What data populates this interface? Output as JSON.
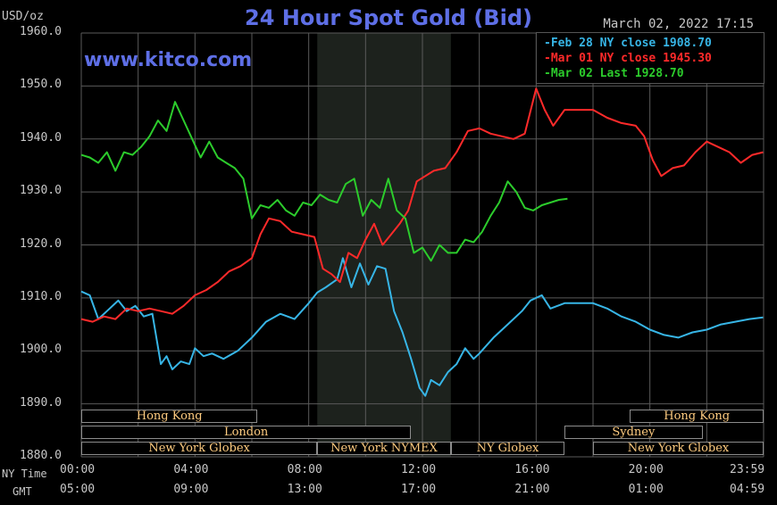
{
  "title": "24 Hour Spot Gold (Bid)",
  "unit_label": "USD/oz",
  "timestamp": "March 02, 2022 17:15",
  "website": "www.kitco.com",
  "colors": {
    "background": "#000000",
    "grid": "#5a5a5a",
    "title": "#5e6fe6",
    "session_text": "#ffcc80",
    "shaded": "#1d221d"
  },
  "legend": [
    {
      "marker": "-",
      "label": "Feb 28 NY close",
      "value": "1908.70",
      "color": "#37b5e6"
    },
    {
      "marker": "-",
      "label": "Mar 01 NY close",
      "value": "1945.30",
      "color": "#ff2a2a"
    },
    {
      "marker": "-",
      "label": "Mar 02 Last",
      "value": "1928.70",
      "color": "#2ccc2c"
    }
  ],
  "row_labels": {
    "ny": "NY Time",
    "gmt": "GMT"
  },
  "sessions": [
    {
      "name": "Hong Kong",
      "start": 0,
      "end": 6.2,
      "row": 0
    },
    {
      "name": "London",
      "start": 0,
      "end": 11.6,
      "row": 1
    },
    {
      "name": "New York Globex",
      "start": 0,
      "end": 8.3,
      "row": 2
    },
    {
      "name": "New York NYMEX",
      "start": 8.3,
      "end": 13.0,
      "row": 2
    },
    {
      "name": "NY Globex",
      "start": 13.0,
      "end": 17.0,
      "row": 2
    },
    {
      "name": "Sydney",
      "start": 17.0,
      "end": 21.85,
      "row": 1
    },
    {
      "name": "Hong Kong",
      "start": 19.3,
      "end": 24,
      "row": 0
    },
    {
      "name": "New York Globex",
      "start": 18.0,
      "end": 24,
      "row": 2
    }
  ],
  "chart_data": {
    "type": "line",
    "title": "24 Hour Spot Gold (Bid)",
    "ylabel": "USD/oz",
    "ylim": [
      1880,
      1960
    ],
    "xlim": [
      0,
      24
    ],
    "y_ticks": [
      "1960.0",
      "1950.0",
      "1940.0",
      "1930.0",
      "1920.0",
      "1910.0",
      "1900.0",
      "1890.0",
      "1880.0"
    ],
    "x_ticks_ny": [
      "00:00",
      "04:00",
      "08:00",
      "12:00",
      "16:00",
      "20:00",
      "23:59"
    ],
    "x_ticks_gmt": [
      "05:00",
      "09:00",
      "13:00",
      "17:00",
      "21:00",
      "01:00",
      "04:59"
    ],
    "shaded_region": [
      8.3,
      13.0
    ],
    "grid": true,
    "legend_position": "top-right",
    "series": [
      {
        "name": "Feb 28 NY close",
        "color": "#37b5e6",
        "x": [
          0,
          0.3,
          0.6,
          1.0,
          1.3,
          1.6,
          1.9,
          2.2,
          2.5,
          2.8,
          3.0,
          3.2,
          3.5,
          3.8,
          4.0,
          4.3,
          4.6,
          5.0,
          5.5,
          6.0,
          6.5,
          7.0,
          7.5,
          8.0,
          8.3,
          8.6,
          9.0,
          9.2,
          9.5,
          9.8,
          10.1,
          10.4,
          10.7,
          11.0,
          11.3,
          11.6,
          11.9,
          12.1,
          12.3,
          12.6,
          12.9,
          13.2,
          13.5,
          13.8,
          14.0,
          14.5,
          15.0,
          15.5,
          15.8,
          16.2,
          16.5,
          17.0,
          17.5,
          18.0,
          18.5,
          19.0,
          19.5,
          20.0,
          20.5,
          21.0,
          21.5,
          22.0,
          22.5,
          23.0,
          23.5,
          23.98
        ],
        "y": [
          1911.2,
          1910.5,
          1906.0,
          1908.0,
          1909.5,
          1907.5,
          1908.5,
          1906.5,
          1907.0,
          1897.5,
          1899.0,
          1896.5,
          1898.0,
          1897.5,
          1900.5,
          1899.0,
          1899.5,
          1898.5,
          1900.0,
          1902.5,
          1905.5,
          1907.0,
          1906.0,
          1909.0,
          1911.0,
          1912.0,
          1913.5,
          1917.5,
          1912.0,
          1916.5,
          1912.5,
          1916.0,
          1915.5,
          1907.5,
          1903.5,
          1898.5,
          1893.0,
          1891.5,
          1894.5,
          1893.5,
          1896.0,
          1897.5,
          1900.5,
          1898.5,
          1899.5,
          1902.5,
          1905.0,
          1907.5,
          1909.5,
          1910.5,
          1908.0,
          1909.0,
          1909.0,
          1909.0,
          1908.0,
          1906.5,
          1905.5,
          1904.0,
          1903.0,
          1902.5,
          1903.5,
          1904.0,
          1905.0,
          1905.5,
          1906.0,
          1906.3
        ]
      },
      {
        "name": "Mar 01 NY close",
        "color": "#ff2a2a",
        "x": [
          0,
          0.4,
          0.8,
          1.2,
          1.6,
          2.0,
          2.4,
          2.8,
          3.2,
          3.6,
          4.0,
          4.4,
          4.8,
          5.2,
          5.6,
          6.0,
          6.3,
          6.6,
          7.0,
          7.4,
          7.8,
          8.2,
          8.5,
          8.8,
          9.1,
          9.4,
          9.7,
          10.0,
          10.3,
          10.6,
          10.9,
          11.2,
          11.5,
          11.8,
          12.1,
          12.4,
          12.8,
          13.2,
          13.6,
          14.0,
          14.4,
          14.8,
          15.2,
          15.6,
          16.0,
          16.3,
          16.6,
          17.0,
          17.5,
          18.0,
          18.5,
          19.0,
          19.5,
          19.8,
          20.1,
          20.4,
          20.8,
          21.2,
          21.6,
          22.0,
          22.4,
          22.8,
          23.2,
          23.6,
          23.98
        ],
        "y": [
          1906.0,
          1905.5,
          1906.5,
          1906.0,
          1908.0,
          1907.5,
          1908.0,
          1907.5,
          1907.0,
          1908.5,
          1910.5,
          1911.5,
          1913.0,
          1915.0,
          1916.0,
          1917.5,
          1922.0,
          1925.0,
          1924.5,
          1922.5,
          1922.0,
          1921.5,
          1915.5,
          1914.5,
          1913.0,
          1918.5,
          1917.5,
          1921.0,
          1924.0,
          1920.0,
          1922.0,
          1924.0,
          1926.5,
          1932.0,
          1933.0,
          1934.0,
          1934.5,
          1937.5,
          1941.5,
          1942.0,
          1941.0,
          1940.5,
          1940.0,
          1941.0,
          1949.5,
          1945.5,
          1942.5,
          1945.5,
          1945.5,
          1945.5,
          1944.0,
          1943.0,
          1942.5,
          1940.5,
          1936.0,
          1933.0,
          1934.5,
          1935.0,
          1937.5,
          1939.5,
          1938.5,
          1937.5,
          1935.5,
          1937.0,
          1937.5
        ]
      },
      {
        "name": "Mar 02 Last",
        "color": "#2ccc2c",
        "x": [
          0,
          0.3,
          0.6,
          0.9,
          1.2,
          1.5,
          1.8,
          2.1,
          2.4,
          2.7,
          3.0,
          3.3,
          3.6,
          3.9,
          4.2,
          4.5,
          4.8,
          5.1,
          5.4,
          5.7,
          6.0,
          6.3,
          6.6,
          6.9,
          7.2,
          7.5,
          7.8,
          8.1,
          8.4,
          8.7,
          9.0,
          9.3,
          9.6,
          9.9,
          10.2,
          10.5,
          10.8,
          11.1,
          11.4,
          11.7,
          12.0,
          12.3,
          12.6,
          12.9,
          13.2,
          13.5,
          13.8,
          14.1,
          14.4,
          14.7,
          15.0,
          15.3,
          15.6,
          15.9,
          16.2,
          16.5,
          16.8,
          17.1
        ],
        "y": [
          1937.0,
          1936.5,
          1935.5,
          1937.5,
          1934.0,
          1937.5,
          1937.0,
          1938.5,
          1940.5,
          1943.5,
          1941.5,
          1947.0,
          1943.5,
          1940.0,
          1936.5,
          1939.5,
          1936.5,
          1935.5,
          1934.5,
          1932.5,
          1925.0,
          1927.5,
          1927.0,
          1928.5,
          1926.5,
          1925.5,
          1928.0,
          1927.5,
          1929.5,
          1928.5,
          1928.0,
          1931.5,
          1932.5,
          1925.5,
          1928.5,
          1927.0,
          1932.5,
          1926.5,
          1925.0,
          1918.5,
          1919.5,
          1917.0,
          1920.0,
          1918.5,
          1918.5,
          1921.0,
          1920.5,
          1922.5,
          1925.5,
          1928.0,
          1932.0,
          1930.0,
          1927.0,
          1926.5,
          1927.5,
          1928.0,
          1928.5,
          1928.7
        ]
      }
    ]
  }
}
